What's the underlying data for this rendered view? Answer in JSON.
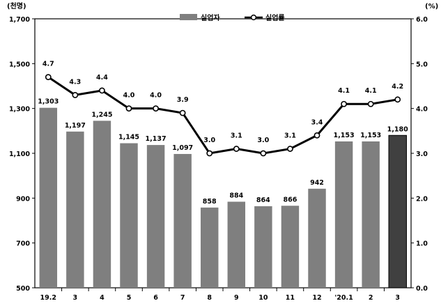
{
  "chart_data": {
    "type": "bar+line",
    "categories": [
      "19.2",
      "3",
      "4",
      "5",
      "6",
      "7",
      "8",
      "9",
      "10",
      "11",
      "12",
      "'20.1",
      "2",
      "3"
    ],
    "series": [
      {
        "name": "실업자",
        "type": "bar",
        "axis": "left",
        "values": [
          1303,
          1197,
          1245,
          1145,
          1137,
          1097,
          858,
          884,
          864,
          866,
          942,
          1153,
          1153,
          1180
        ],
        "labels": [
          "1,303",
          "1,197",
          "1,245",
          "1,145",
          "1,137",
          "1,097",
          "858",
          "884",
          "864",
          "866",
          "942",
          "1,153",
          "1,153",
          "1,180"
        ],
        "color": "#7f7f7f",
        "highlight_color": "#404040",
        "highlight_index": 13
      },
      {
        "name": "실업률",
        "type": "line",
        "axis": "right",
        "values": [
          4.7,
          4.3,
          4.4,
          4.0,
          4.0,
          3.9,
          3.0,
          3.1,
          3.0,
          3.1,
          3.4,
          4.1,
          4.1,
          4.2
        ],
        "labels": [
          "4.7",
          "4.3",
          "4.4",
          "4.0",
          "4.0",
          "3.9",
          "3.0",
          "3.1",
          "3.0",
          "3.1",
          "3.4",
          "4.1",
          "4.1",
          "4.2"
        ],
        "color": "#000000"
      }
    ],
    "y_left": {
      "unit": "(천명)",
      "ylim": [
        500,
        1700
      ],
      "ticks": [
        500,
        700,
        900,
        1100,
        1300,
        1500,
        1700
      ],
      "tick_labels": [
        "500",
        "700",
        "900",
        "1,100",
        "1,300",
        "1,500",
        "1,700"
      ]
    },
    "y_right": {
      "unit": "(%)",
      "ylim": [
        0,
        6
      ],
      "ticks": [
        0,
        1,
        2,
        3,
        4,
        5,
        6
      ],
      "tick_labels": [
        "0.0",
        "1.0",
        "2.0",
        "3.0",
        "4.0",
        "5.0",
        "6.0"
      ]
    },
    "grid": false,
    "legend_position": "top-center"
  }
}
